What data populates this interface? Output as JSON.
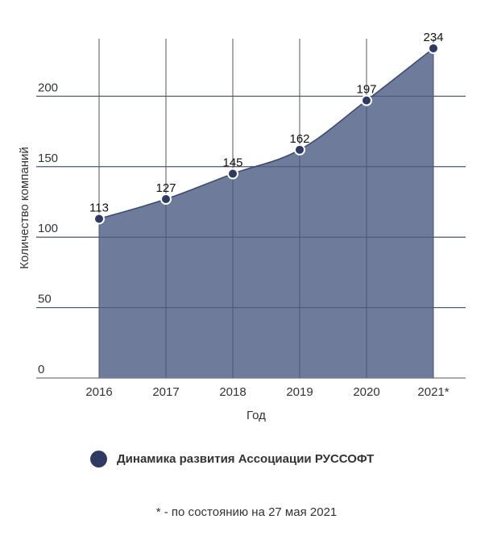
{
  "chart_data": {
    "type": "area",
    "categories": [
      "2016",
      "2017",
      "2018",
      "2019",
      "2020",
      "2021*"
    ],
    "series": [
      {
        "name": "Динамика развития Ассоциации РУССОФТ",
        "values": [
          113,
          127,
          145,
          162,
          197,
          234
        ]
      }
    ],
    "xlabel": "Год",
    "ylabel": "Количество компаний",
    "ylim": [
      0,
      250
    ],
    "yticks": [
      0,
      50,
      100,
      150,
      200
    ],
    "grid": true,
    "legend": "bottom",
    "colors": {
      "fill": "#6e7b9a",
      "line": "#3a4a70",
      "marker": "#2f3a63",
      "grid": "#555555"
    }
  },
  "footnote": "* - по состоянию на 27 мая 2021"
}
